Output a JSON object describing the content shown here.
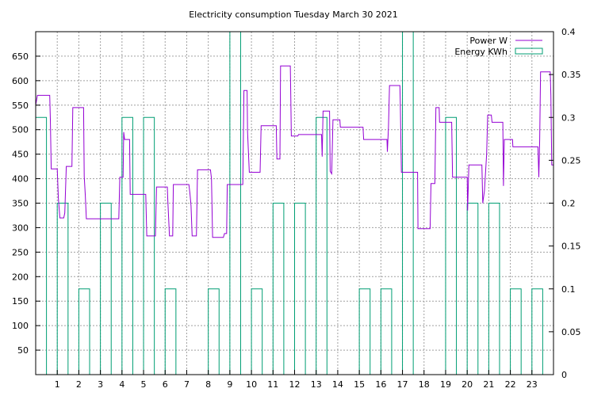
{
  "chart_data": {
    "type": "line",
    "title": "Electricity consumption Tuesday March 30 2021",
    "xlim": [
      0,
      24
    ],
    "ylim_left": [
      0,
      700
    ],
    "ylim_right": [
      0,
      0.4
    ],
    "x_ticks": [
      1,
      2,
      3,
      4,
      5,
      6,
      7,
      8,
      9,
      10,
      11,
      12,
      13,
      14,
      15,
      16,
      17,
      18,
      19,
      20,
      21,
      22,
      23
    ],
    "y_ticks_left": [
      50,
      100,
      150,
      200,
      250,
      300,
      350,
      400,
      450,
      500,
      550,
      600,
      650
    ],
    "y_ticks_right": [
      "0",
      "0.05",
      "0.1",
      "0.15",
      "0.2",
      "0.25",
      "0.3",
      "0.35",
      "0.4"
    ],
    "grid": true,
    "legend_position": "top-right",
    "colors": {
      "power": "#9400d3",
      "energy": "#009e73",
      "grid": "#a0a0a0",
      "axis": "#000000"
    },
    "series": [
      {
        "name": "Power W",
        "axis": "left",
        "style": "step-line",
        "points": [
          [
            0.0,
            550
          ],
          [
            0.08,
            570
          ],
          [
            0.65,
            570
          ],
          [
            0.68,
            520
          ],
          [
            0.72,
            420
          ],
          [
            1.0,
            420
          ],
          [
            1.05,
            360
          ],
          [
            1.12,
            320
          ],
          [
            1.3,
            320
          ],
          [
            1.35,
            330
          ],
          [
            1.42,
            425
          ],
          [
            1.68,
            425
          ],
          [
            1.72,
            545
          ],
          [
            2.22,
            545
          ],
          [
            2.25,
            405
          ],
          [
            2.3,
            365
          ],
          [
            2.35,
            318
          ],
          [
            3.85,
            318
          ],
          [
            3.9,
            403
          ],
          [
            4.05,
            403
          ],
          [
            4.08,
            495
          ],
          [
            4.12,
            480
          ],
          [
            4.35,
            480
          ],
          [
            4.38,
            368
          ],
          [
            5.1,
            368
          ],
          [
            5.15,
            283
          ],
          [
            5.55,
            283
          ],
          [
            5.6,
            383
          ],
          [
            6.1,
            383
          ],
          [
            6.12,
            360
          ],
          [
            6.2,
            283
          ],
          [
            6.35,
            283
          ],
          [
            6.38,
            388
          ],
          [
            7.1,
            388
          ],
          [
            7.15,
            370
          ],
          [
            7.2,
            345
          ],
          [
            7.25,
            283
          ],
          [
            7.45,
            283
          ],
          [
            7.5,
            418
          ],
          [
            8.1,
            418
          ],
          [
            8.15,
            400
          ],
          [
            8.2,
            280
          ],
          [
            8.7,
            280
          ],
          [
            8.75,
            288
          ],
          [
            8.85,
            288
          ],
          [
            8.88,
            388
          ],
          [
            9.6,
            388
          ],
          [
            9.65,
            580
          ],
          [
            9.8,
            580
          ],
          [
            9.82,
            495
          ],
          [
            9.9,
            413
          ],
          [
            10.4,
            413
          ],
          [
            10.45,
            508
          ],
          [
            11.15,
            508
          ],
          [
            11.18,
            440
          ],
          [
            11.32,
            440
          ],
          [
            11.35,
            630
          ],
          [
            11.8,
            630
          ],
          [
            11.82,
            580
          ],
          [
            11.85,
            487
          ],
          [
            12.15,
            487
          ],
          [
            12.18,
            490
          ],
          [
            13.25,
            490
          ],
          [
            13.28,
            445
          ],
          [
            13.32,
            538
          ],
          [
            13.62,
            538
          ],
          [
            13.65,
            415
          ],
          [
            13.72,
            410
          ],
          [
            13.78,
            520
          ],
          [
            14.1,
            520
          ],
          [
            14.12,
            505
          ],
          [
            15.17,
            505
          ],
          [
            15.2,
            480
          ],
          [
            16.28,
            480
          ],
          [
            16.3,
            455
          ],
          [
            16.35,
            505
          ],
          [
            16.4,
            590
          ],
          [
            16.88,
            590
          ],
          [
            16.9,
            555
          ],
          [
            16.95,
            413
          ],
          [
            17.7,
            413
          ],
          [
            17.72,
            298
          ],
          [
            18.28,
            298
          ],
          [
            18.32,
            390
          ],
          [
            18.5,
            390
          ],
          [
            18.55,
            545
          ],
          [
            18.7,
            545
          ],
          [
            18.72,
            515
          ],
          [
            19.28,
            515
          ],
          [
            19.32,
            403
          ],
          [
            20.0,
            403
          ],
          [
            20.02,
            335
          ],
          [
            20.08,
            428
          ],
          [
            20.68,
            428
          ],
          [
            20.72,
            350
          ],
          [
            20.8,
            375
          ],
          [
            20.9,
            450
          ],
          [
            20.95,
            530
          ],
          [
            21.12,
            530
          ],
          [
            21.15,
            515
          ],
          [
            21.65,
            515
          ],
          [
            21.68,
            385
          ],
          [
            21.72,
            480
          ],
          [
            22.1,
            480
          ],
          [
            22.12,
            465
          ],
          [
            23.28,
            465
          ],
          [
            23.32,
            403
          ],
          [
            23.36,
            480
          ],
          [
            23.4,
            618
          ],
          [
            23.85,
            618
          ],
          [
            23.88,
            570
          ],
          [
            23.92,
            428
          ],
          [
            24.0,
            428
          ]
        ]
      },
      {
        "name": "Energy KWh",
        "axis": "right",
        "style": "bar-outline",
        "bins": [
          [
            0.0,
            0.5,
            0.3
          ],
          [
            1.0,
            1.5,
            0.2
          ],
          [
            2.0,
            2.5,
            0.1
          ],
          [
            3.0,
            3.5,
            0.2
          ],
          [
            4.0,
            4.5,
            0.3
          ],
          [
            5.0,
            5.5,
            0.3
          ],
          [
            6.0,
            6.5,
            0.1
          ],
          [
            8.0,
            8.5,
            0.1
          ],
          [
            9.0,
            9.5,
            0.4
          ],
          [
            10.0,
            10.5,
            0.1
          ],
          [
            11.0,
            11.5,
            0.2
          ],
          [
            12.0,
            12.5,
            0.2
          ],
          [
            13.0,
            13.5,
            0.3
          ],
          [
            15.0,
            15.5,
            0.1
          ],
          [
            16.0,
            16.5,
            0.1
          ],
          [
            17.0,
            17.5,
            0.4
          ],
          [
            19.0,
            19.5,
            0.3
          ],
          [
            20.0,
            20.5,
            0.2
          ],
          [
            21.0,
            21.5,
            0.2
          ],
          [
            22.0,
            22.5,
            0.1
          ],
          [
            23.0,
            23.5,
            0.1
          ]
        ]
      }
    ]
  }
}
